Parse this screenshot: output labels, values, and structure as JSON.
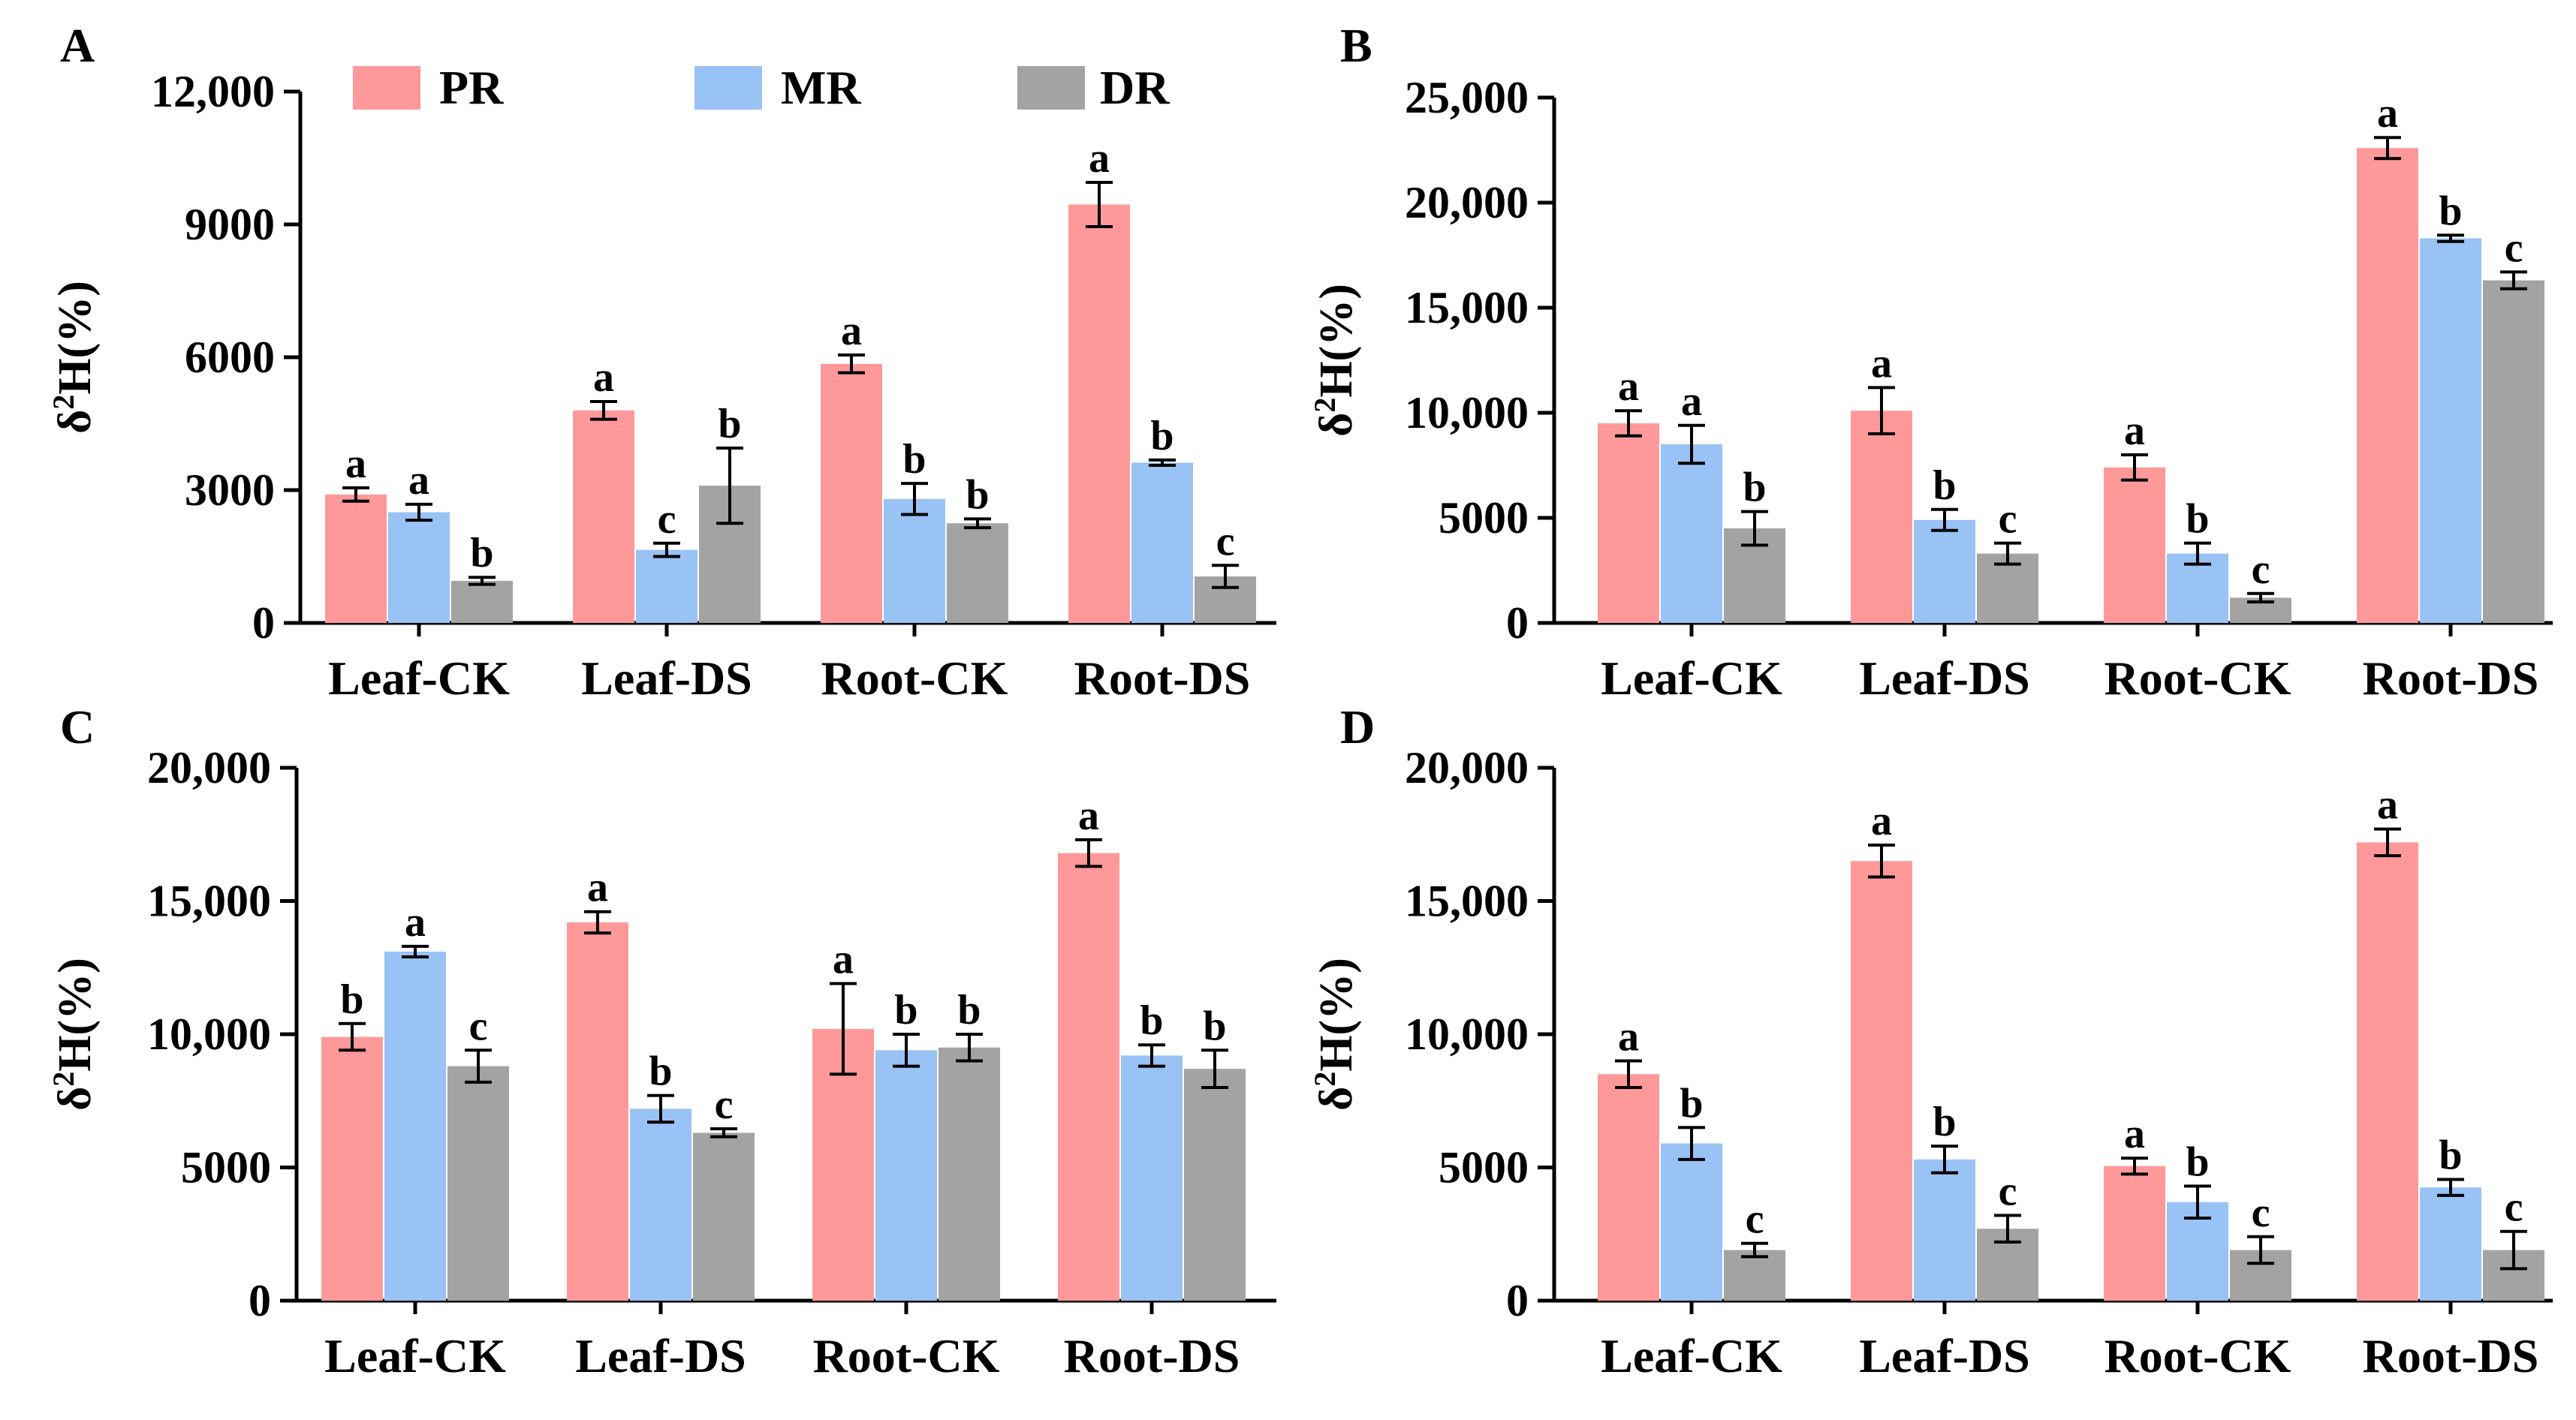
{
  "colors": {
    "PR": "#FF9999",
    "MR": "#99C2F5",
    "DR": "#A3A3A3"
  },
  "legend": {
    "items": [
      "PR",
      "MR",
      "DR"
    ]
  },
  "chart_data": [
    {
      "panel": "A",
      "type": "bar",
      "ylabel_base": "δ",
      "ylabel_sup": "2",
      "ylabel_rest": "H(%)",
      "ylim": [
        0,
        12000
      ],
      "yticks": [
        0,
        3000,
        6000,
        9000,
        12000
      ],
      "ytick_labels": [
        "0",
        "3000",
        "6000",
        "9000",
        "12,000"
      ],
      "categories": [
        "Leaf-CK",
        "Leaf-DS",
        "Root-CK",
        "Root-DS"
      ],
      "series": [
        {
          "name": "PR",
          "values": [
            2900,
            4800,
            5850,
            9450
          ],
          "errors": [
            150,
            200,
            200,
            500
          ],
          "letters": [
            "a",
            "a",
            "a",
            "a"
          ]
        },
        {
          "name": "MR",
          "values": [
            2500,
            1650,
            2800,
            3620
          ],
          "errors": [
            180,
            150,
            350,
            60
          ],
          "letters": [
            "a",
            "c",
            "b",
            "b"
          ]
        },
        {
          "name": "DR",
          "values": [
            950,
            3100,
            2250,
            1050
          ],
          "errors": [
            80,
            850,
            100,
            250
          ],
          "letters": [
            "b",
            "b",
            "b",
            "c"
          ]
        }
      ]
    },
    {
      "panel": "B",
      "type": "bar",
      "ylabel_base": "δ",
      "ylabel_sup": "2",
      "ylabel_rest": "H(%)",
      "ylim": [
        0,
        25000
      ],
      "yticks": [
        0,
        5000,
        10000,
        15000,
        20000,
        25000
      ],
      "ytick_labels": [
        "0",
        "5000",
        "10,000",
        "15,000",
        "20,000",
        "25,000"
      ],
      "categories": [
        "Leaf-CK",
        "Leaf-DS",
        "Root-CK",
        "Root-DS"
      ],
      "series": [
        {
          "name": "PR",
          "values": [
            9500,
            10100,
            7400,
            22600
          ],
          "errors": [
            600,
            1100,
            600,
            500
          ],
          "letters": [
            "a",
            "a",
            "a",
            "a"
          ]
        },
        {
          "name": "MR",
          "values": [
            8500,
            4900,
            3300,
            18300
          ],
          "errors": [
            900,
            500,
            500,
            150
          ],
          "letters": [
            "a",
            "b",
            "b",
            "b"
          ]
        },
        {
          "name": "DR",
          "values": [
            4500,
            3300,
            1200,
            16300
          ],
          "errors": [
            800,
            500,
            200,
            400
          ],
          "letters": [
            "b",
            "c",
            "c",
            "c"
          ]
        }
      ]
    },
    {
      "panel": "C",
      "type": "bar",
      "ylabel_base": "δ",
      "ylabel_sup": "2",
      "ylabel_rest": "H(%)",
      "ylim": [
        0,
        20000
      ],
      "yticks": [
        0,
        5000,
        10000,
        15000,
        20000
      ],
      "ytick_labels": [
        "0",
        "5000",
        "10,000",
        "15,000",
        "20,000"
      ],
      "categories": [
        "Leaf-CK",
        "Leaf-DS",
        "Root-CK",
        "Root-DS"
      ],
      "series": [
        {
          "name": "PR",
          "values": [
            9900,
            14200,
            10200,
            16800
          ],
          "errors": [
            500,
            400,
            1700,
            500
          ],
          "letters": [
            "b",
            "a",
            "a",
            "a"
          ]
        },
        {
          "name": "MR",
          "values": [
            13100,
            7200,
            9400,
            9200
          ],
          "errors": [
            200,
            500,
            600,
            400
          ],
          "letters": [
            "a",
            "b",
            "b",
            "b"
          ]
        },
        {
          "name": "DR",
          "values": [
            8800,
            6300,
            9500,
            8700
          ],
          "errors": [
            600,
            150,
            500,
            700
          ],
          "letters": [
            "c",
            "c",
            "b",
            "b"
          ]
        }
      ]
    },
    {
      "panel": "D",
      "type": "bar",
      "ylabel_base": "δ",
      "ylabel_sup": "2",
      "ylabel_rest": "H(%)",
      "ylim": [
        0,
        20000
      ],
      "yticks": [
        0,
        5000,
        10000,
        15000,
        20000
      ],
      "ytick_labels": [
        "0",
        "5000",
        "10,000",
        "15,000",
        "20,000"
      ],
      "categories": [
        "Leaf-CK",
        "Leaf-DS",
        "Root-CK",
        "Root-DS"
      ],
      "series": [
        {
          "name": "PR",
          "values": [
            8500,
            16500,
            5050,
            17200
          ],
          "errors": [
            500,
            600,
            300,
            500
          ],
          "letters": [
            "a",
            "a",
            "a",
            "a"
          ]
        },
        {
          "name": "MR",
          "values": [
            5900,
            5300,
            3700,
            4250
          ],
          "errors": [
            600,
            500,
            600,
            300
          ],
          "letters": [
            "b",
            "b",
            "b",
            "b"
          ]
        },
        {
          "name": "DR",
          "values": [
            1900,
            2700,
            1900,
            1900
          ],
          "errors": [
            250,
            500,
            500,
            700
          ],
          "letters": [
            "c",
            "c",
            "c",
            "c"
          ]
        }
      ]
    }
  ]
}
